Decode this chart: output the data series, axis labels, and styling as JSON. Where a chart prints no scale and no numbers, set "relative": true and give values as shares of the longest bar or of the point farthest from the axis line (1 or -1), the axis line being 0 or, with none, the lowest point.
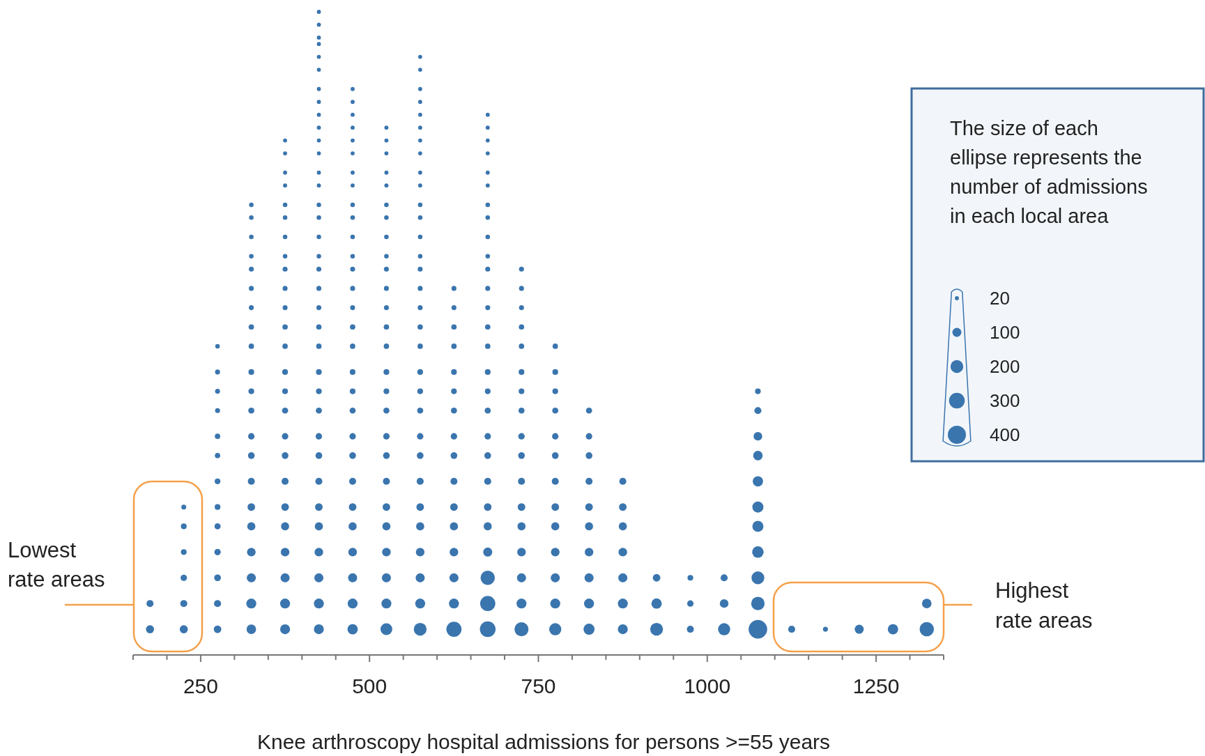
{
  "chart_data": {
    "type": "bubble",
    "relative": true,
    "xlabel": "Knee arthroscopy hospital  admissions for persons >=55 years",
    "legend_title": "The size of each ellipse represents the number of admissions in each local area",
    "size_legend": [
      20,
      100,
      200,
      300,
      400
    ],
    "xlim": [
      150,
      1350
    ],
    "xticks": [
      {
        "value": 150,
        "label": null
      },
      {
        "value": 200,
        "label": null
      },
      250,
      {
        "value": 300,
        "label": null
      },
      {
        "value": 350,
        "label": null
      },
      {
        "value": 400,
        "label": null
      },
      {
        "value": 450,
        "label": null
      },
      500,
      {
        "value": 550,
        "label": null
      },
      {
        "value": 600,
        "label": null
      },
      {
        "value": 650,
        "label": null
      },
      {
        "value": 700,
        "label": null
      },
      750,
      {
        "value": 800,
        "label": null
      },
      {
        "value": 850,
        "label": null
      },
      {
        "value": 900,
        "label": null
      },
      {
        "value": 950,
        "label": null
      },
      1000,
      {
        "value": 1050,
        "label": null
      },
      {
        "value": 1100,
        "label": null
      },
      {
        "value": 1150,
        "label": null
      },
      {
        "value": 1200,
        "label": null
      },
      1250,
      {
        "value": 1300,
        "label": null
      },
      {
        "value": 1350,
        "label": null
      }
    ],
    "annotations": [
      "Lowest rate areas",
      "Highest rate areas"
    ],
    "series": [
      {
        "color": "#3a75ae",
        "x": [
          175,
          175
        ],
        "values": [
          0.04,
          0.08
        ],
        "sizes": [
          80,
          60
        ]
      },
      {
        "color": "#3a75ae",
        "x": [
          225,
          225,
          225,
          225,
          225,
          225
        ],
        "values": [
          0.04,
          0.08,
          0.12,
          0.16,
          0.2,
          0.23
        ],
        "sizes": [
          80,
          60,
          50,
          40,
          40,
          30
        ]
      },
      {
        "color": "#3a75ae",
        "x": [
          275,
          275,
          275,
          275,
          275,
          275,
          275,
          275,
          275,
          275,
          275,
          275,
          275
        ],
        "values": [
          0.04,
          0.08,
          0.12,
          0.16,
          0.2,
          0.23,
          0.27,
          0.31,
          0.34,
          0.38,
          0.41,
          0.44,
          0.48
        ],
        "sizes": [
          70,
          60,
          55,
          50,
          45,
          40,
          40,
          35,
          35,
          30,
          30,
          30,
          25
        ]
      },
      {
        "color": "#3a75ae",
        "x": [
          325,
          325,
          325,
          325,
          325,
          325,
          325,
          325,
          325,
          325,
          325,
          325,
          325,
          325,
          325,
          325,
          325,
          325,
          325,
          325,
          325
        ],
        "values": [
          0.04,
          0.08,
          0.12,
          0.16,
          0.2,
          0.23,
          0.27,
          0.31,
          0.34,
          0.38,
          0.41,
          0.44,
          0.48,
          0.51,
          0.54,
          0.57,
          0.6,
          0.62,
          0.65,
          0.68,
          0.7
        ],
        "sizes": [
          110,
          120,
          100,
          90,
          80,
          70,
          60,
          55,
          50,
          45,
          40,
          40,
          35,
          35,
          30,
          30,
          30,
          25,
          25,
          25,
          25
        ]
      },
      {
        "color": "#3a75ae",
        "x": [
          375,
          375,
          375,
          375,
          375,
          375,
          375,
          375,
          375,
          375,
          375,
          375,
          375,
          375,
          375,
          375,
          375,
          375,
          375,
          375,
          375,
          375,
          375,
          375,
          375
        ],
        "values": [
          0.04,
          0.08,
          0.12,
          0.16,
          0.2,
          0.23,
          0.27,
          0.31,
          0.34,
          0.38,
          0.41,
          0.44,
          0.48,
          0.51,
          0.54,
          0.57,
          0.6,
          0.62,
          0.65,
          0.68,
          0.7,
          0.73,
          0.75,
          0.78,
          0.8
        ],
        "sizes": [
          120,
          120,
          100,
          90,
          80,
          70,
          60,
          55,
          50,
          45,
          40,
          40,
          35,
          35,
          30,
          30,
          30,
          25,
          25,
          25,
          25,
          20,
          20,
          20,
          20
        ]
      },
      {
        "color": "#3a75ae",
        "x": [
          425,
          425,
          425,
          425,
          425,
          425,
          425,
          425,
          425,
          425,
          425,
          425,
          425,
          425,
          425,
          425,
          425,
          425,
          425,
          425,
          425,
          425,
          425,
          425,
          425,
          425,
          425,
          425,
          425,
          425,
          425,
          425,
          425,
          425,
          425
        ],
        "values": [
          0.04,
          0.08,
          0.12,
          0.16,
          0.2,
          0.23,
          0.27,
          0.31,
          0.34,
          0.38,
          0.41,
          0.44,
          0.48,
          0.51,
          0.54,
          0.57,
          0.6,
          0.62,
          0.65,
          0.68,
          0.7,
          0.73,
          0.75,
          0.78,
          0.8,
          0.82,
          0.84,
          0.86,
          0.88,
          0.91,
          0.93,
          0.95,
          0.96,
          0.98,
          1
        ],
        "sizes": [
          120,
          120,
          100,
          90,
          80,
          70,
          60,
          55,
          50,
          45,
          40,
          40,
          35,
          35,
          30,
          30,
          30,
          25,
          25,
          25,
          25,
          20,
          20,
          20,
          20,
          20,
          20,
          20,
          20,
          20,
          20,
          20,
          20,
          20,
          20
        ]
      },
      {
        "color": "#3a75ae",
        "x": [
          475,
          475,
          475,
          475,
          475,
          475,
          475,
          475,
          475,
          475,
          475,
          475,
          475,
          475,
          475,
          475,
          475,
          475,
          475,
          475,
          475,
          475,
          475,
          475,
          475,
          475,
          475,
          475,
          475
        ],
        "values": [
          0.04,
          0.08,
          0.12,
          0.16,
          0.2,
          0.23,
          0.27,
          0.31,
          0.34,
          0.38,
          0.41,
          0.44,
          0.48,
          0.51,
          0.54,
          0.57,
          0.6,
          0.62,
          0.65,
          0.68,
          0.7,
          0.73,
          0.75,
          0.78,
          0.8,
          0.82,
          0.84,
          0.86,
          0.88
        ],
        "sizes": [
          130,
          120,
          100,
          90,
          80,
          70,
          60,
          55,
          50,
          45,
          40,
          40,
          35,
          35,
          30,
          30,
          30,
          25,
          25,
          25,
          25,
          20,
          20,
          20,
          20,
          20,
          20,
          20,
          20
        ]
      },
      {
        "color": "#3a75ae",
        "x": [
          525,
          525,
          525,
          525,
          525,
          525,
          525,
          525,
          525,
          525,
          525,
          525,
          525,
          525,
          525,
          525,
          525,
          525,
          525,
          525,
          525,
          525,
          525,
          525,
          525,
          525
        ],
        "values": [
          0.04,
          0.08,
          0.12,
          0.16,
          0.2,
          0.23,
          0.27,
          0.31,
          0.34,
          0.38,
          0.41,
          0.44,
          0.48,
          0.51,
          0.54,
          0.57,
          0.6,
          0.62,
          0.65,
          0.68,
          0.7,
          0.73,
          0.75,
          0.78,
          0.8,
          0.82
        ],
        "sizes": [
          170,
          120,
          100,
          90,
          80,
          70,
          60,
          55,
          50,
          45,
          40,
          40,
          35,
          35,
          30,
          30,
          30,
          25,
          25,
          25,
          25,
          20,
          20,
          20,
          20,
          20
        ]
      },
      {
        "color": "#3a75ae",
        "x": [
          575,
          575,
          575,
          575,
          575,
          575,
          575,
          575,
          575,
          575,
          575,
          575,
          575,
          575,
          575,
          575,
          575,
          575,
          575,
          575,
          575,
          575,
          575,
          575,
          575,
          575,
          575,
          575,
          575,
          575,
          575
        ],
        "values": [
          0.04,
          0.08,
          0.12,
          0.16,
          0.2,
          0.23,
          0.27,
          0.31,
          0.34,
          0.38,
          0.41,
          0.44,
          0.48,
          0.51,
          0.54,
          0.57,
          0.6,
          0.62,
          0.65,
          0.68,
          0.7,
          0.73,
          0.75,
          0.78,
          0.8,
          0.82,
          0.84,
          0.86,
          0.88,
          0.91,
          0.93
        ],
        "sizes": [
          200,
          120,
          100,
          90,
          80,
          70,
          60,
          55,
          50,
          45,
          40,
          40,
          35,
          35,
          30,
          30,
          30,
          25,
          25,
          25,
          25,
          20,
          20,
          20,
          20,
          20,
          20,
          20,
          20,
          20,
          20
        ]
      },
      {
        "color": "#3a75ae",
        "x": [
          625,
          625,
          625,
          625,
          625,
          625,
          625,
          625,
          625,
          625,
          625,
          625,
          625,
          625,
          625,
          625
        ],
        "values": [
          0.04,
          0.08,
          0.12,
          0.16,
          0.2,
          0.23,
          0.27,
          0.31,
          0.34,
          0.38,
          0.41,
          0.44,
          0.48,
          0.51,
          0.54,
          0.57
        ],
        "sizes": [
          280,
          120,
          100,
          90,
          80,
          70,
          60,
          55,
          50,
          45,
          40,
          40,
          35,
          35,
          30,
          30
        ]
      },
      {
        "color": "#3a75ae",
        "x": [
          675,
          675,
          675,
          675,
          675,
          675,
          675,
          675,
          675,
          675,
          675,
          675,
          675,
          675,
          675,
          675,
          675,
          675,
          675,
          675,
          675,
          675,
          675,
          675,
          675,
          675,
          675
        ],
        "values": [
          0.04,
          0.08,
          0.12,
          0.16,
          0.2,
          0.23,
          0.27,
          0.31,
          0.34,
          0.38,
          0.41,
          0.44,
          0.48,
          0.51,
          0.54,
          0.57,
          0.6,
          0.62,
          0.65,
          0.68,
          0.7,
          0.73,
          0.75,
          0.78,
          0.8,
          0.82,
          0.84
        ],
        "sizes": [
          300,
          280,
          250,
          100,
          80,
          70,
          60,
          55,
          50,
          45,
          40,
          40,
          35,
          35,
          30,
          30,
          30,
          25,
          25,
          25,
          25,
          20,
          20,
          20,
          20,
          20,
          20
        ]
      },
      {
        "color": "#3a75ae",
        "x": [
          725,
          725,
          725,
          725,
          725,
          725,
          725,
          725,
          725,
          725,
          725,
          725,
          725,
          725,
          725,
          725,
          725
        ],
        "values": [
          0.04,
          0.08,
          0.12,
          0.16,
          0.2,
          0.23,
          0.27,
          0.31,
          0.34,
          0.38,
          0.41,
          0.44,
          0.48,
          0.51,
          0.54,
          0.57,
          0.6
        ],
        "sizes": [
          240,
          120,
          100,
          90,
          80,
          70,
          60,
          55,
          50,
          45,
          40,
          40,
          35,
          35,
          30,
          30,
          30
        ]
      },
      {
        "color": "#3a75ae",
        "x": [
          775,
          775,
          775,
          775,
          775,
          775,
          775,
          775,
          775,
          775,
          775,
          775,
          775
        ],
        "values": [
          0.04,
          0.08,
          0.12,
          0.16,
          0.2,
          0.23,
          0.27,
          0.31,
          0.34,
          0.38,
          0.41,
          0.44,
          0.48
        ],
        "sizes": [
          180,
          120,
          100,
          90,
          80,
          70,
          60,
          55,
          50,
          45,
          40,
          40,
          35
        ]
      },
      {
        "color": "#3a75ae",
        "x": [
          825,
          825,
          825,
          825,
          825,
          825,
          825,
          825,
          825,
          825
        ],
        "values": [
          0.04,
          0.08,
          0.12,
          0.16,
          0.2,
          0.23,
          0.27,
          0.31,
          0.34,
          0.38
        ],
        "sizes": [
          150,
          120,
          100,
          90,
          80,
          70,
          60,
          55,
          50,
          45
        ]
      },
      {
        "color": "#3a75ae",
        "x": [
          875,
          875,
          875,
          875,
          875,
          875,
          875
        ],
        "values": [
          0.04,
          0.08,
          0.12,
          0.16,
          0.2,
          0.23,
          0.27
        ],
        "sizes": [
          120,
          120,
          100,
          90,
          80,
          70,
          60
        ]
      },
      {
        "color": "#3a75ae",
        "x": [
          925,
          925,
          925
        ],
        "values": [
          0.04,
          0.08,
          0.12
        ],
        "sizes": [
          200,
          130,
          70
        ]
      },
      {
        "color": "#3a75ae",
        "x": [
          975,
          975,
          975
        ],
        "values": [
          0.04,
          0.08,
          0.12
        ],
        "sizes": [
          60,
          50,
          40
        ]
      },
      {
        "color": "#3a75ae",
        "x": [
          1025,
          1025,
          1025
        ],
        "values": [
          0.04,
          0.08,
          0.12
        ],
        "sizes": [
          180,
          90,
          60
        ]
      },
      {
        "color": "#3a75ae",
        "x": [
          1075,
          1075,
          1075,
          1075,
          1075,
          1075,
          1075,
          1075,
          1075,
          1075,
          1075
        ],
        "values": [
          0.04,
          0.08,
          0.12,
          0.16,
          0.2,
          0.23,
          0.27,
          0.31,
          0.34,
          0.38,
          0.41
        ],
        "sizes": [
          420,
          220,
          200,
          160,
          150,
          150,
          130,
          110,
          90,
          60,
          40
        ]
      },
      {
        "color": "#3a75ae",
        "x": [
          1125
        ],
        "values": [
          0.04
        ],
        "sizes": [
          60
        ]
      },
      {
        "color": "#3a75ae",
        "x": [
          1175
        ],
        "values": [
          0.04
        ],
        "sizes": [
          30
        ]
      },
      {
        "color": "#3a75ae",
        "x": [
          1225
        ],
        "values": [
          0.04
        ],
        "sizes": [
          100
        ]
      },
      {
        "color": "#3a75ae",
        "x": [
          1275
        ],
        "values": [
          0.04
        ],
        "sizes": [
          130
        ]
      },
      {
        "color": "#3a75ae",
        "x": [
          1325,
          1325
        ],
        "values": [
          0.04,
          0.08
        ],
        "sizes": [
          250,
          110
        ]
      }
    ]
  }
}
